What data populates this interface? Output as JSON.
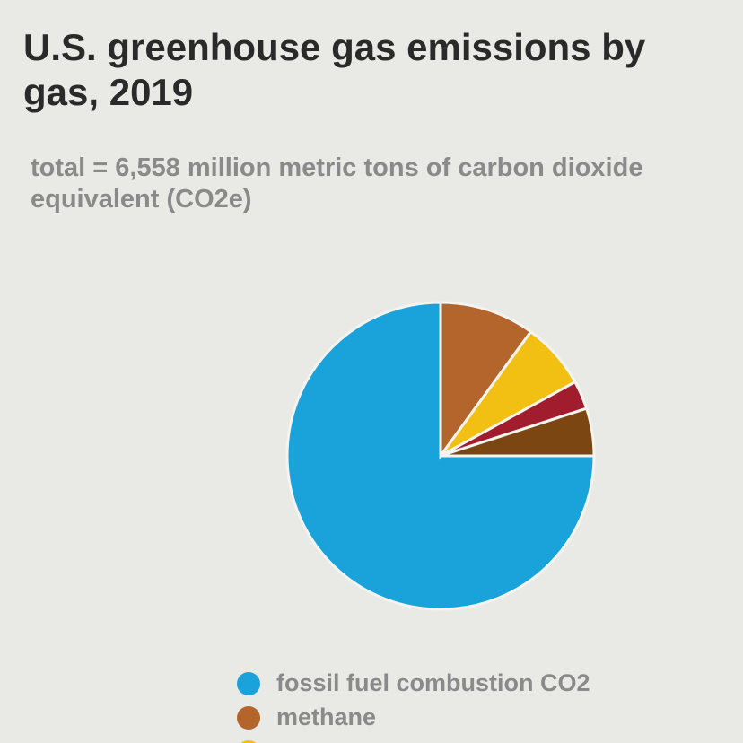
{
  "chart_data": {
    "type": "pie",
    "title": "U.S. greenhouse gas emissions by gas, 2019",
    "subtitle": "total = 6,558 million metric tons of carbon dioxide equivalent (CO2e)",
    "categories": [
      "fossil fuel combustion CO2",
      "methane",
      null,
      null,
      null
    ],
    "values": [
      75,
      10,
      7,
      3,
      5
    ],
    "colors": [
      "#1aa3da",
      "#b4652b",
      "#f1c012",
      "#a11d2e",
      "#7b4612"
    ]
  }
}
